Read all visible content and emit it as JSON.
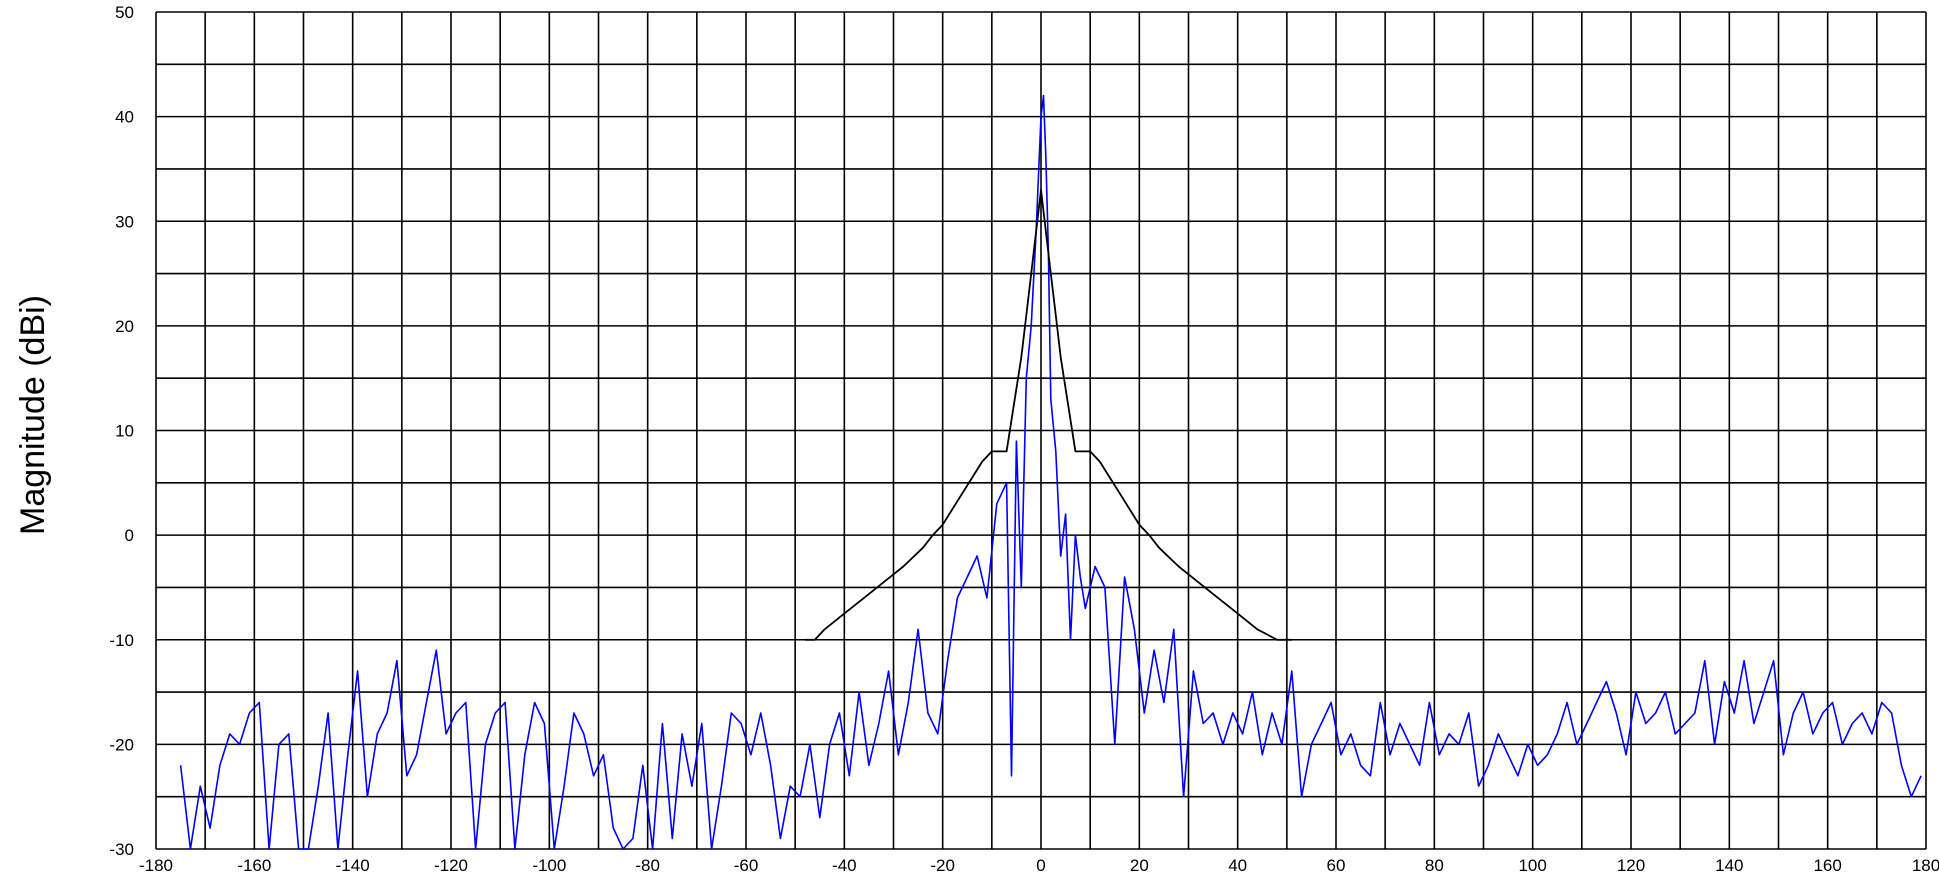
{
  "chart_data": {
    "type": "line",
    "title": "",
    "xlabel": "",
    "ylabel": "Magnitude     (dBi)",
    "xlim": [
      -180,
      180
    ],
    "ylim": [
      -30,
      50
    ],
    "xticks": [
      -180,
      -160,
      -140,
      -120,
      -100,
      -80,
      -60,
      -40,
      -20,
      0,
      20,
      40,
      60,
      80,
      100,
      120,
      140,
      160,
      180
    ],
    "yticks": [
      -30,
      -20,
      -10,
      0,
      10,
      20,
      30,
      40,
      50
    ],
    "x_grid_step": 10,
    "y_grid_step": 5,
    "grid": true,
    "legend": "none",
    "series": [
      {
        "color": "#0000ff",
        "x": [
          -175,
          -173,
          -171,
          -169,
          -167,
          -165,
          -163,
          -161,
          -159,
          -157,
          -155,
          -153,
          -151,
          -149,
          -147,
          -145,
          -143,
          -141,
          -139,
          -137,
          -135,
          -133,
          -131,
          -129,
          -127,
          -125,
          -123,
          -121,
          -119,
          -117,
          -115,
          -113,
          -111,
          -109,
          -107,
          -105,
          -103,
          -101,
          -99,
          -97,
          -95,
          -93,
          -91,
          -89,
          -87,
          -85,
          -83,
          -81,
          -79,
          -77,
          -75,
          -73,
          -71,
          -69,
          -67,
          -65,
          -63,
          -61,
          -59,
          -57,
          -55,
          -53,
          -51,
          -49,
          -47,
          -45,
          -43,
          -41,
          -39,
          -37,
          -35,
          -33,
          -31,
          -29,
          -27,
          -25,
          -23,
          -21,
          -19,
          -17,
          -15,
          -13,
          -11,
          -9,
          -7,
          -6,
          -5,
          -4,
          -3,
          -2,
          -1,
          0,
          0.5,
          1,
          1.5,
          2,
          3,
          4,
          5,
          6,
          7,
          8,
          9,
          11,
          13,
          15,
          17,
          19,
          21,
          23,
          25,
          27,
          29,
          31,
          33,
          35,
          37,
          39,
          41,
          43,
          45,
          47,
          49,
          51,
          53,
          55,
          57,
          59,
          61,
          63,
          65,
          67,
          69,
          71,
          73,
          75,
          77,
          79,
          81,
          83,
          85,
          87,
          89,
          91,
          93,
          95,
          97,
          99,
          101,
          103,
          105,
          107,
          109,
          111,
          113,
          115,
          117,
          119,
          121,
          123,
          125,
          127,
          129,
          131,
          133,
          135,
          137,
          139,
          141,
          143,
          145,
          147,
          149,
          151,
          153,
          155,
          157,
          159,
          161,
          163,
          165,
          167,
          169,
          171,
          173,
          175,
          177,
          179
        ],
        "y": [
          -22,
          -30,
          -24,
          -28,
          -22,
          -19,
          -20,
          -17,
          -16,
          -30,
          -20,
          -19,
          -30,
          -30,
          -24,
          -17,
          -30,
          -21,
          -13,
          -25,
          -19,
          -17,
          -12,
          -23,
          -21,
          -16,
          -11,
          -19,
          -17,
          -16,
          -30,
          -20,
          -17,
          -16,
          -30,
          -21,
          -16,
          -18,
          -30,
          -24,
          -17,
          -19,
          -23,
          -21,
          -28,
          -30,
          -29,
          -22,
          -30,
          -18,
          -29,
          -19,
          -24,
          -18,
          -30,
          -24,
          -17,
          -18,
          -21,
          -17,
          -22,
          -29,
          -24,
          -25,
          -20,
          -27,
          -20,
          -17,
          -23,
          -15,
          -22,
          -18,
          -13,
          -21,
          -16,
          -9,
          -17,
          -19,
          -12,
          -6,
          -4,
          -2,
          -6,
          3,
          5,
          -23,
          9,
          -5,
          15,
          20,
          29,
          40,
          42,
          36,
          27,
          13,
          8,
          -2,
          2,
          -10,
          0,
          -4,
          -7,
          -3,
          -5,
          -20,
          -4,
          -9,
          -17,
          -11,
          -16,
          -9,
          -25,
          -13,
          -18,
          -17,
          -20,
          -17,
          -19,
          -15,
          -21,
          -17,
          -20,
          -13,
          -25,
          -20,
          -18,
          -16,
          -21,
          -19,
          -22,
          -23,
          -16,
          -21,
          -18,
          -20,
          -22,
          -16,
          -21,
          -19,
          -20,
          -17,
          -24,
          -22,
          -19,
          -21,
          -23,
          -20,
          -22,
          -21,
          -19,
          -16,
          -20,
          -18,
          -16,
          -14,
          -17,
          -21,
          -15,
          -18,
          -17,
          -15,
          -19,
          -18,
          -17,
          -12,
          -20,
          -14,
          -17,
          -12,
          -18,
          -15,
          -12,
          -21,
          -17,
          -15,
          -19,
          -17,
          -16,
          -20,
          -18,
          -17,
          -19,
          -16,
          -17,
          -22,
          -25,
          -23
        ]
      },
      {
        "color": "#000000",
        "x": [
          -48,
          -46,
          -44,
          -40,
          -36,
          -32,
          -28,
          -24,
          -22,
          -20,
          -18,
          -16,
          -14,
          -12,
          -10,
          -9,
          -7,
          -6,
          -5,
          -4,
          -3,
          -2,
          -1,
          0,
          1,
          2,
          3,
          4,
          5,
          6,
          7,
          9,
          10,
          12,
          14,
          16,
          18,
          20,
          22,
          24,
          28,
          32,
          36,
          40,
          44,
          46,
          48,
          51
        ],
        "y": [
          -10,
          -10,
          -9,
          -7.5,
          -6,
          -4.5,
          -3,
          -1.2,
          0,
          1,
          2.5,
          4,
          5.5,
          7,
          8,
          8,
          8,
          11,
          14,
          17,
          21,
          25,
          29,
          33,
          29,
          25,
          21,
          17,
          14,
          11,
          8,
          8,
          8,
          7,
          5.5,
          4,
          2.5,
          1,
          0,
          -1.2,
          -3,
          -4.5,
          -6,
          -7.5,
          -9,
          -9.5,
          -10,
          -10
        ]
      }
    ]
  }
}
